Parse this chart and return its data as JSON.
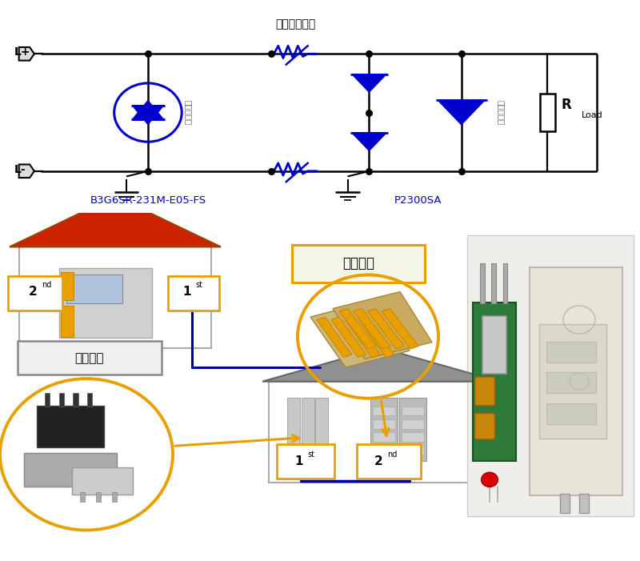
{
  "bg_color": "#ffffff",
  "circuit_color": "#000000",
  "blue_color": "#0000CC",
  "label_B3G": "B3G6SR-231M-E05-FS",
  "label_P2300": "P2300SA",
  "label_fuse": "过流保护器件",
  "label_Lplus": "L+",
  "label_Lminus": "L-",
  "label_Rload": "R",
  "label_load_sub": "Load",
  "label_gas_rot": "气体放电管",
  "label_tvs_rot": "固体放电管",
  "label_ci_bao": "次级保护",
  "label_chu_bao": "初级保护",
  "orange": "#E8A000",
  "dark_blue": "#000080",
  "gray_roof": "#888888",
  "red_roof": "#CC2200"
}
